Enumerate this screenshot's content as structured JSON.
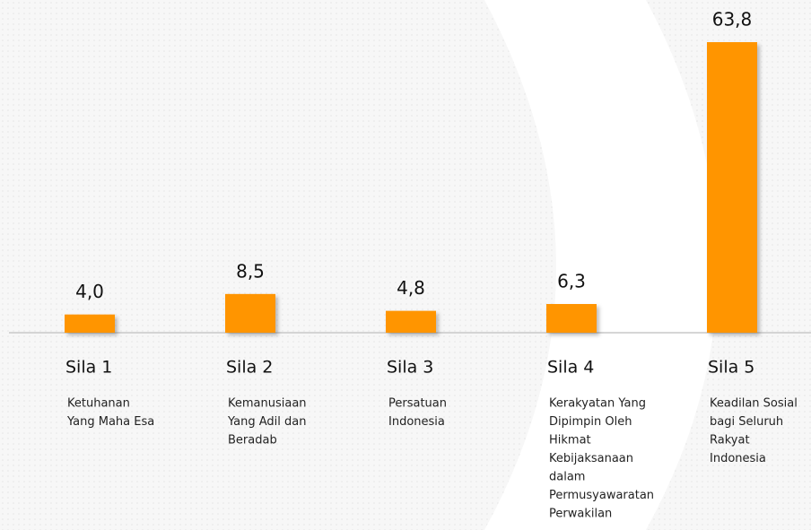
{
  "chart_data": {
    "type": "bar",
    "categories": [
      "Sila 1",
      "Sila 2",
      "Sila 3",
      "Sila 4",
      "Sila 5"
    ],
    "descriptions": [
      [
        "Ketuhanan",
        "Yang Maha Esa"
      ],
      [
        "Kemanusiaan",
        "Yang  Adil  dan",
        "Beradab"
      ],
      [
        "Persatuan",
        "Indonesia"
      ],
      [
        "Kerakyatan Yang",
        "Dipimpin Oleh",
        "Hikmat",
        "Kebijaksanaan",
        "dalam",
        "Permusyawaratan",
        "Perwakilan"
      ],
      [
        "Keadilan Sosial",
        "bagi Seluruh",
        "Rakyat",
        "Indonesia"
      ]
    ],
    "values": [
      4.0,
      8.5,
      4.8,
      6.3,
      63.8
    ],
    "value_labels": [
      "4,0",
      "8,5",
      "4,8",
      "6,3",
      "63,8"
    ],
    "color": "#ff9500"
  }
}
